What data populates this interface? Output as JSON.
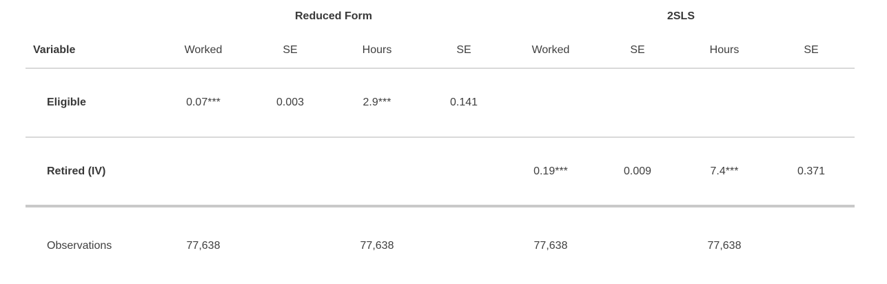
{
  "table": {
    "left_header": "Variable",
    "group_headers": [
      {
        "label": "Reduced Form",
        "colspan": 4
      },
      {
        "label": "2SLS",
        "colspan": 4
      }
    ],
    "columns": [
      "Worked",
      "SE",
      "Hours",
      "SE",
      "Worked",
      "SE",
      "Hours",
      "SE"
    ],
    "rows": [
      {
        "variable": "Eligible",
        "emphasis": true,
        "values": [
          "0.07***",
          "0.003",
          "2.9***",
          "0.141",
          "",
          "",
          "",
          ""
        ]
      },
      {
        "variable": "Retired (IV)",
        "emphasis": true,
        "values": [
          "",
          "",
          "",
          "",
          "0.19***",
          "0.009",
          "7.4***",
          "0.371"
        ]
      },
      {
        "variable": "Observations",
        "emphasis": false,
        "values": [
          "77,638",
          "",
          "77,638",
          "",
          "77,638",
          "",
          "77,638",
          ""
        ]
      }
    ],
    "colors": {
      "text": "#3e3e3e",
      "heading_text": "#383838",
      "rule_thin": "#d9d9d9",
      "rule_thick": "#c9c9c9",
      "background": "#ffffff"
    }
  }
}
